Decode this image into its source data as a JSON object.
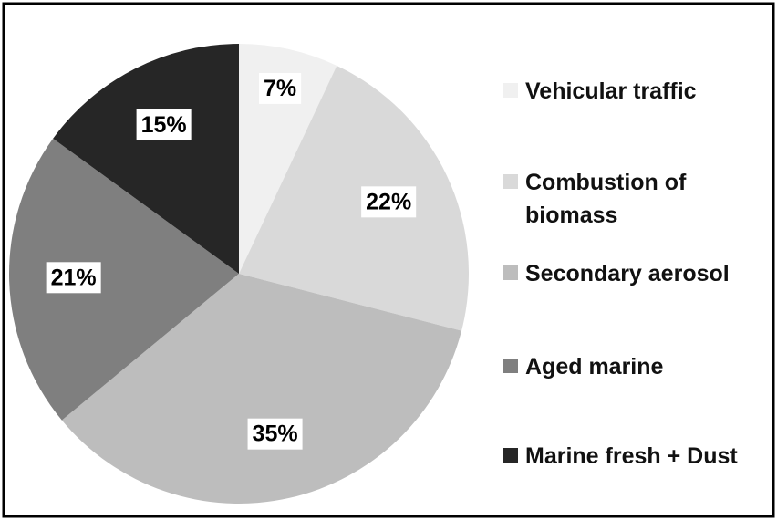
{
  "chart_data": {
    "type": "pie",
    "categories": [
      "Vehicular traffic",
      "Combustion of biomass",
      "Secondary aerosol",
      "Aged marine",
      "Marine fresh + Dust"
    ],
    "values": [
      7,
      22,
      35,
      21,
      15
    ],
    "value_labels": [
      "7%",
      "22%",
      "35%",
      "21%",
      "15%"
    ],
    "colors": [
      "#f0f0f0",
      "#d9d9d9",
      "#bdbdbd",
      "#7f7f7f",
      "#262626"
    ],
    "legend": "right"
  }
}
